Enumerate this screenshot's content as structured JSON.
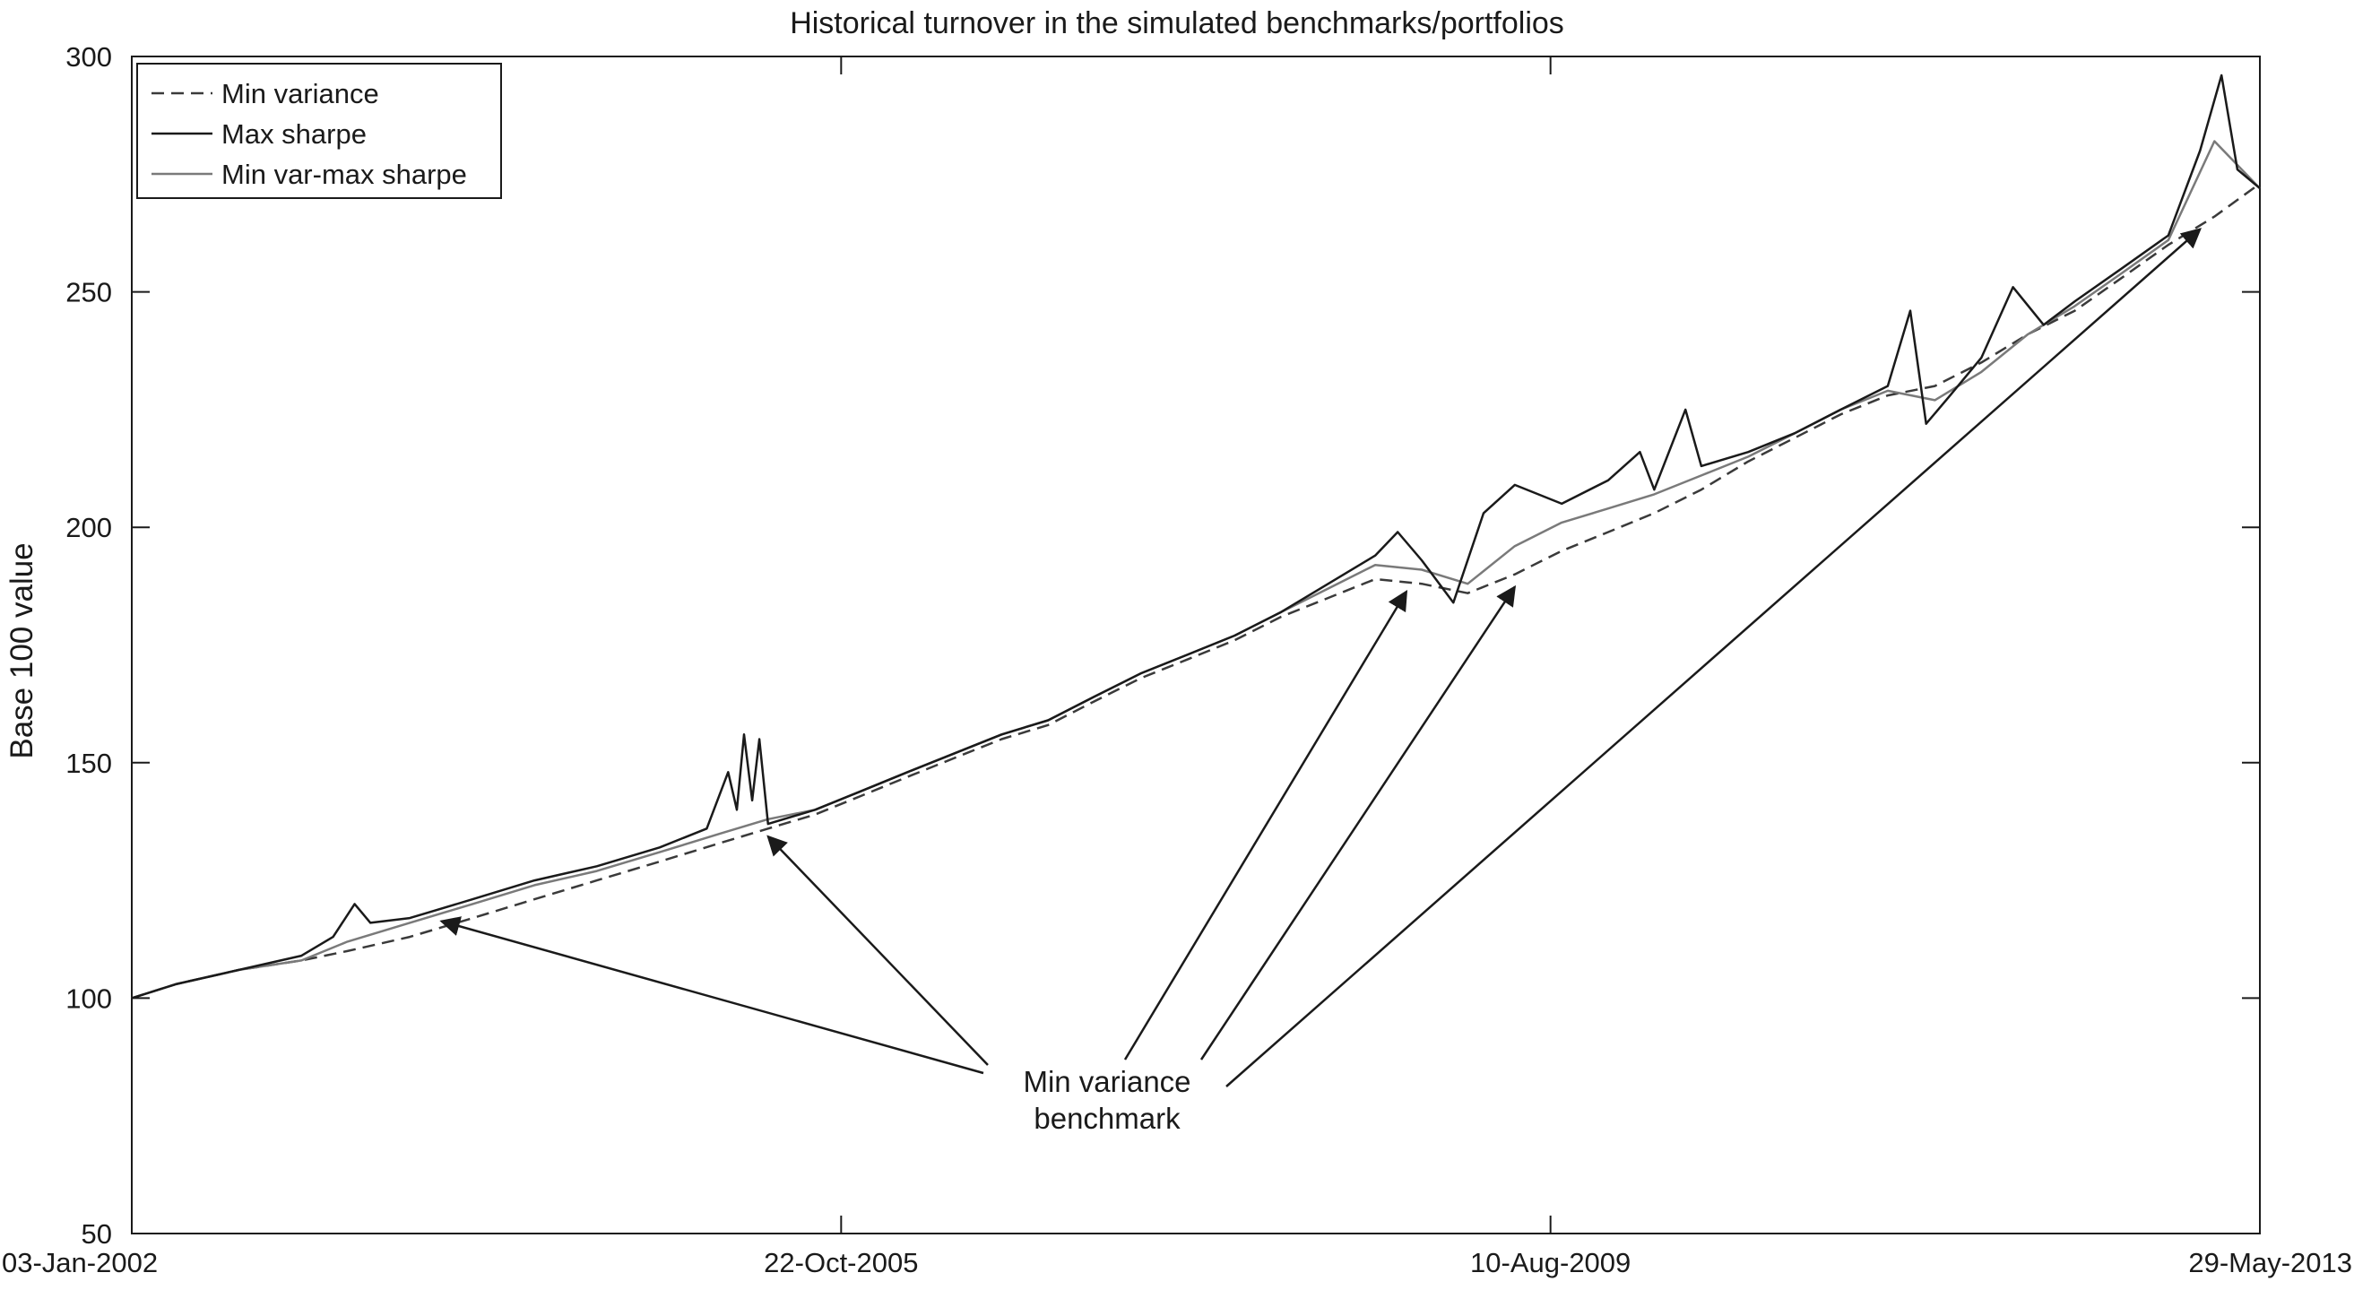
{
  "chart_data": {
    "type": "line",
    "title": "Historical turnover in the simulated benchmarks/portfolios",
    "xlabel": "",
    "ylabel": "Base 100 value",
    "xlim": [
      "03-Jan-2002",
      "29-May-2013"
    ],
    "ylim": [
      50,
      300
    ],
    "x_ticks": [
      "03-Jan-2002",
      "22-Oct-2005",
      "10-Aug-2009",
      "29-May-2013"
    ],
    "y_ticks": [
      50,
      100,
      150,
      200,
      250,
      300
    ],
    "grid": false,
    "legend_position": "top-left",
    "legend": [
      "Min variance",
      "Max sharpe",
      "Min var-max sharpe"
    ],
    "series": [
      {
        "name": "Min variance",
        "line_style": "dashed",
        "color": "#3a3a3a",
        "points": [
          [
            "2002-01-03",
            100
          ],
          [
            "2002-04-01",
            103
          ],
          [
            "2002-08-01",
            106
          ],
          [
            "2002-12-01",
            108
          ],
          [
            "2003-03-01",
            110
          ],
          [
            "2003-07-01",
            113
          ],
          [
            "2003-11-01",
            117
          ],
          [
            "2004-03-01",
            121
          ],
          [
            "2004-07-01",
            125
          ],
          [
            "2004-11-01",
            129
          ],
          [
            "2005-03-01",
            133
          ],
          [
            "2005-06-01",
            136
          ],
          [
            "2005-09-01",
            139
          ],
          [
            "2005-12-01",
            143
          ],
          [
            "2006-03-01",
            147
          ],
          [
            "2006-06-01",
            151
          ],
          [
            "2006-09-01",
            155
          ],
          [
            "2006-12-01",
            158
          ],
          [
            "2007-03-01",
            163
          ],
          [
            "2007-06-01",
            168
          ],
          [
            "2007-09-01",
            172
          ],
          [
            "2007-12-01",
            176
          ],
          [
            "2008-03-01",
            181
          ],
          [
            "2008-06-01",
            185
          ],
          [
            "2008-09-01",
            189
          ],
          [
            "2008-12-01",
            188
          ],
          [
            "2009-03-01",
            186
          ],
          [
            "2009-06-01",
            190
          ],
          [
            "2009-09-01",
            195
          ],
          [
            "2009-12-01",
            199
          ],
          [
            "2010-03-01",
            203
          ],
          [
            "2010-06-01",
            208
          ],
          [
            "2010-09-01",
            214
          ],
          [
            "2010-12-01",
            219
          ],
          [
            "2011-03-01",
            224
          ],
          [
            "2011-06-01",
            228
          ],
          [
            "2011-09-01",
            230
          ],
          [
            "2011-12-01",
            235
          ],
          [
            "2012-03-01",
            241
          ],
          [
            "2012-06-01",
            246
          ],
          [
            "2012-09-01",
            253
          ],
          [
            "2012-12-01",
            260
          ],
          [
            "2013-03-01",
            266
          ],
          [
            "2013-05-29",
            273
          ]
        ]
      },
      {
        "name": "Max sharpe",
        "line_style": "solid",
        "color": "#1a1a1a",
        "points": [
          [
            "2002-01-03",
            100
          ],
          [
            "2002-04-01",
            103
          ],
          [
            "2002-08-01",
            106
          ],
          [
            "2002-12-01",
            109
          ],
          [
            "2003-02-01",
            113
          ],
          [
            "2003-03-15",
            120
          ],
          [
            "2003-04-15",
            116
          ],
          [
            "2003-07-01",
            117
          ],
          [
            "2003-11-01",
            121
          ],
          [
            "2004-03-01",
            125
          ],
          [
            "2004-07-01",
            128
          ],
          [
            "2004-11-01",
            132
          ],
          [
            "2005-02-01",
            136
          ],
          [
            "2005-03-15",
            148
          ],
          [
            "2005-04-01",
            140
          ],
          [
            "2005-04-15",
            156
          ],
          [
            "2005-05-01",
            142
          ],
          [
            "2005-05-15",
            155
          ],
          [
            "2005-06-01",
            137
          ],
          [
            "2005-09-01",
            140
          ],
          [
            "2005-12-01",
            144
          ],
          [
            "2006-03-01",
            148
          ],
          [
            "2006-06-01",
            152
          ],
          [
            "2006-09-01",
            156
          ],
          [
            "2006-12-01",
            159
          ],
          [
            "2007-03-01",
            164
          ],
          [
            "2007-06-01",
            169
          ],
          [
            "2007-09-01",
            173
          ],
          [
            "2007-12-01",
            177
          ],
          [
            "2008-03-01",
            182
          ],
          [
            "2008-06-01",
            188
          ],
          [
            "2008-09-01",
            194
          ],
          [
            "2008-10-15",
            199
          ],
          [
            "2008-12-01",
            193
          ],
          [
            "2009-02-01",
            184
          ],
          [
            "2009-04-01",
            203
          ],
          [
            "2009-06-01",
            209
          ],
          [
            "2009-09-01",
            205
          ],
          [
            "2009-12-01",
            210
          ],
          [
            "2010-02-01",
            216
          ],
          [
            "2010-03-01",
            208
          ],
          [
            "2010-05-01",
            225
          ],
          [
            "2010-06-01",
            213
          ],
          [
            "2010-09-01",
            216
          ],
          [
            "2010-12-01",
            220
          ],
          [
            "2011-03-01",
            225
          ],
          [
            "2011-06-01",
            230
          ],
          [
            "2011-07-15",
            246
          ],
          [
            "2011-08-15",
            222
          ],
          [
            "2011-10-01",
            228
          ],
          [
            "2011-12-01",
            236
          ],
          [
            "2012-02-01",
            251
          ],
          [
            "2012-04-01",
            243
          ],
          [
            "2012-06-01",
            248
          ],
          [
            "2012-09-01",
            255
          ],
          [
            "2012-12-01",
            262
          ],
          [
            "2013-02-01",
            280
          ],
          [
            "2013-03-15",
            296
          ],
          [
            "2013-04-15",
            276
          ],
          [
            "2013-05-29",
            272
          ]
        ]
      },
      {
        "name": "Min var-max sharpe",
        "line_style": "solid",
        "color": "#7a7a7a",
        "points": [
          [
            "2002-01-03",
            100
          ],
          [
            "2002-04-01",
            103
          ],
          [
            "2002-08-01",
            106
          ],
          [
            "2002-12-01",
            108
          ],
          [
            "2003-03-01",
            112
          ],
          [
            "2003-07-01",
            116
          ],
          [
            "2003-11-01",
            120
          ],
          [
            "2004-03-01",
            124
          ],
          [
            "2004-07-01",
            127
          ],
          [
            "2004-11-01",
            131
          ],
          [
            "2005-03-01",
            135
          ],
          [
            "2005-06-01",
            138
          ],
          [
            "2005-09-01",
            140
          ],
          [
            "2005-12-01",
            144
          ],
          [
            "2006-03-01",
            148
          ],
          [
            "2006-06-01",
            152
          ],
          [
            "2006-09-01",
            156
          ],
          [
            "2006-12-01",
            159
          ],
          [
            "2007-03-01",
            164
          ],
          [
            "2007-06-01",
            169
          ],
          [
            "2007-09-01",
            173
          ],
          [
            "2007-12-01",
            177
          ],
          [
            "2008-03-01",
            182
          ],
          [
            "2008-06-01",
            187
          ],
          [
            "2008-09-01",
            192
          ],
          [
            "2008-12-01",
            191
          ],
          [
            "2009-03-01",
            188
          ],
          [
            "2009-06-01",
            196
          ],
          [
            "2009-09-01",
            201
          ],
          [
            "2009-12-01",
            204
          ],
          [
            "2010-03-01",
            207
          ],
          [
            "2010-06-01",
            211
          ],
          [
            "2010-09-01",
            215
          ],
          [
            "2010-12-01",
            220
          ],
          [
            "2011-03-01",
            225
          ],
          [
            "2011-06-01",
            229
          ],
          [
            "2011-09-01",
            227
          ],
          [
            "2011-12-01",
            233
          ],
          [
            "2012-03-01",
            241
          ],
          [
            "2012-06-01",
            247
          ],
          [
            "2012-09-01",
            254
          ],
          [
            "2012-12-01",
            261
          ],
          [
            "2013-03-01",
            282
          ],
          [
            "2013-05-29",
            272
          ]
        ]
      }
    ],
    "annotations": [
      {
        "text": [
          "Min variance",
          "benchmark"
        ],
        "arrow_targets": [
          [
            "2003-09-01",
            119
          ],
          [
            "2005-06-01",
            137
          ],
          [
            "2008-11-01",
            189
          ],
          [
            "2009-06-01",
            190
          ],
          [
            "2013-02-01",
            266
          ]
        ]
      }
    ]
  }
}
